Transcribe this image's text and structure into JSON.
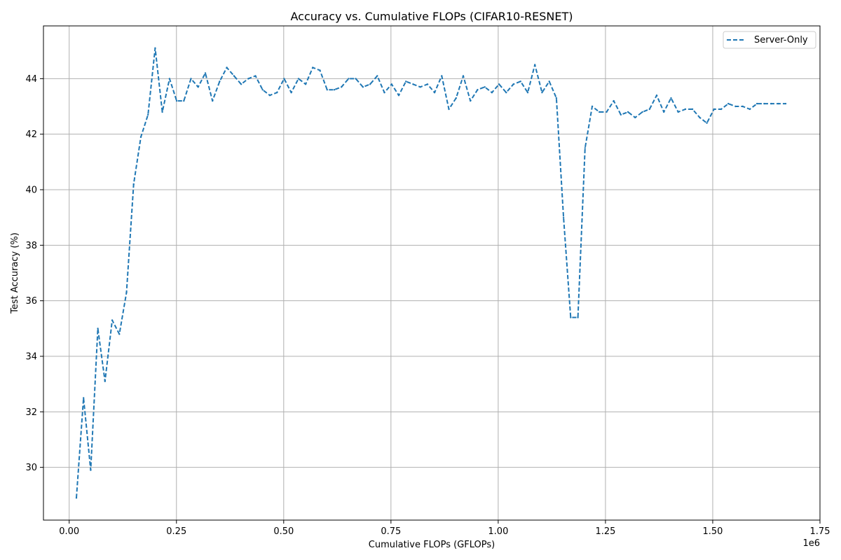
{
  "chart_data": {
    "type": "line",
    "title": "Accuracy vs. Cumulative FLOPs (CIFAR10-RESNET)",
    "xlabel": "Cumulative FLOPs (GFLOPs)",
    "ylabel": "Test Accuracy (%)",
    "x_offset_label": "1e6",
    "xlim": [
      -60000,
      1750000
    ],
    "ylim": [
      28.1,
      45.9
    ],
    "xticks": [
      0,
      250000,
      500000,
      750000,
      1000000,
      1250000,
      1500000,
      1750000
    ],
    "xtick_labels": [
      "0.00",
      "0.25",
      "0.50",
      "0.75",
      "1.00",
      "1.25",
      "1.50",
      "1.75"
    ],
    "yticks": [
      30,
      32,
      34,
      36,
      38,
      40,
      42,
      44
    ],
    "ytick_labels": [
      "30",
      "32",
      "34",
      "36",
      "38",
      "40",
      "42",
      "44"
    ],
    "grid": true,
    "legend_position": "top-right",
    "series": [
      {
        "name": "Server-Only",
        "color": "#1f77b4",
        "linestyle": "dashed",
        "x": [
          16700,
          33400,
          50100,
          66800,
          83500,
          100200,
          116900,
          133600,
          150300,
          167000,
          183700,
          200400,
          217100,
          233800,
          250500,
          267200,
          283900,
          300600,
          317300,
          334000,
          350700,
          367400,
          384100,
          400800,
          417500,
          434200,
          450900,
          467600,
          484300,
          501000,
          517700,
          534400,
          551100,
          567800,
          584500,
          601200,
          617900,
          634600,
          651300,
          668000,
          684700,
          701400,
          718100,
          734800,
          751500,
          768200,
          784900,
          801600,
          818300,
          835000,
          851700,
          868400,
          885100,
          901800,
          918500,
          935200,
          951900,
          968600,
          985300,
          1002000,
          1018700,
          1035400,
          1052100,
          1068800,
          1085500,
          1102200,
          1118900,
          1135600,
          1152300,
          1169000,
          1185700,
          1202400,
          1219100,
          1235800,
          1252500,
          1269200,
          1285900,
          1302600,
          1319300,
          1336000,
          1352700,
          1369400,
          1386100,
          1402800,
          1419500,
          1436200,
          1452900,
          1469600,
          1486300,
          1503000,
          1519700,
          1536400,
          1553100,
          1569800,
          1586500,
          1603200,
          1619900,
          1636600,
          1653300,
          1670000
        ],
        "y": [
          28.9,
          32.5,
          29.9,
          35.0,
          33.1,
          35.3,
          34.8,
          36.3,
          40.2,
          41.9,
          42.7,
          45.1,
          42.8,
          44.0,
          43.2,
          43.2,
          44.0,
          43.7,
          44.2,
          43.2,
          43.9,
          44.4,
          44.1,
          43.8,
          44.0,
          44.1,
          43.6,
          43.4,
          43.5,
          44.0,
          43.5,
          44.0,
          43.8,
          44.4,
          44.3,
          43.6,
          43.6,
          43.7,
          44.0,
          44.0,
          43.7,
          43.8,
          44.1,
          43.5,
          43.8,
          43.4,
          43.9,
          43.8,
          43.7,
          43.8,
          43.5,
          44.1,
          42.9,
          43.3,
          44.1,
          43.2,
          43.6,
          43.7,
          43.5,
          43.8,
          43.5,
          43.8,
          43.9,
          43.5,
          44.5,
          43.5,
          43.9,
          43.3,
          39.0,
          35.4,
          35.4,
          41.5,
          43.0,
          42.8,
          42.8,
          43.2,
          42.7,
          42.8,
          42.6,
          42.8,
          42.9,
          43.4,
          42.8,
          43.3,
          42.8,
          42.9,
          42.9,
          42.6,
          42.4,
          42.9,
          42.9,
          43.1,
          43.0,
          43.0,
          42.9,
          43.1,
          43.1,
          43.1,
          43.1,
          43.1
        ]
      }
    ]
  }
}
